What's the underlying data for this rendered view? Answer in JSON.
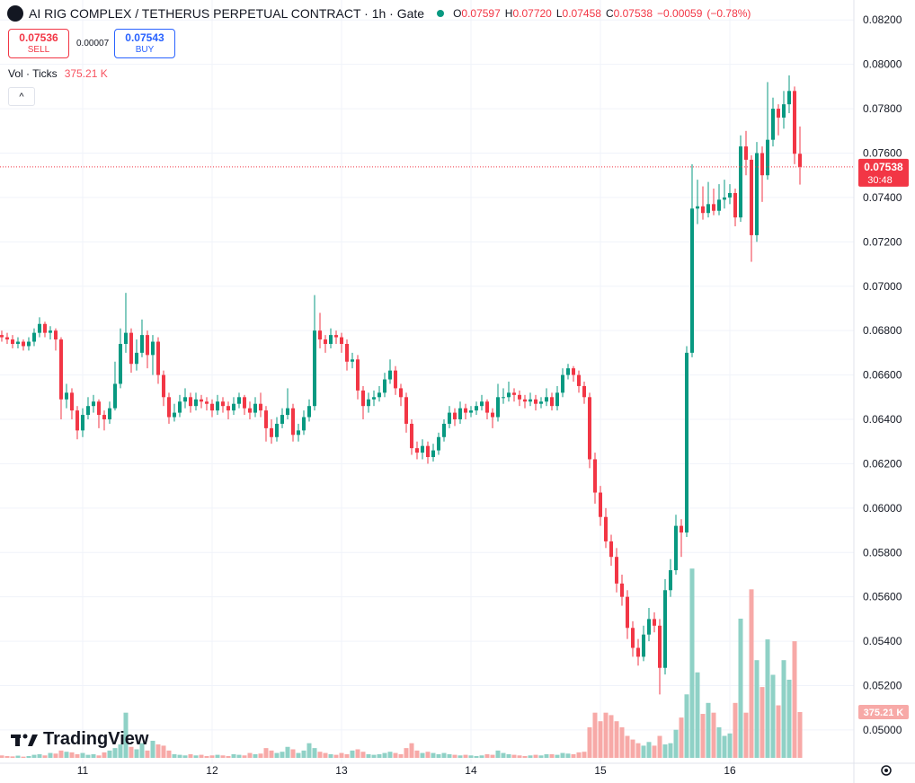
{
  "chart_data": {
    "type": "candlestick",
    "title": "AI RIG COMPLEX / TETHERUS PERPETUAL CONTRACT · 1h · Gate",
    "ohlc_legend": {
      "open": {
        "key": "O",
        "value": 0.07597
      },
      "high": {
        "key": "H",
        "value": {
          "value": 0.0772,
          "label": "0.07720"
        }
      },
      "low": {
        "key": "L",
        "value": 0.07458
      },
      "close": {
        "key": "C",
        "value": 0.07538
      },
      "change": {
        "value": -0.00059,
        "label": "−0.00059"
      },
      "change_pct": {
        "value": -0.78,
        "label": "(−0.78%)"
      }
    },
    "trade": {
      "sell": {
        "price": 0.07536,
        "label": "SELL"
      },
      "spread": 7e-05,
      "buy": {
        "price": 0.07543,
        "label": "BUY"
      }
    },
    "volume_legend": {
      "title": "Vol · Ticks"
    },
    "current_price": 0.07538,
    "countdown": "30:48",
    "branding": "TradingView",
    "up_color": "#089981",
    "down_color": "#f23645",
    "volume_up_color": "#8fd1c6",
    "volume_down_color": "#f7a9a7",
    "grid": true,
    "ylim": [
      0.0485,
      0.0829
    ],
    "yticks": [
      {
        "value": 0.05,
        "label": "0.05000"
      },
      {
        "value": 0.052,
        "label": "0.05200"
      },
      {
        "value": 0.054,
        "label": "0.05400"
      },
      {
        "value": 0.056,
        "label": "0.05600"
      },
      {
        "value": 0.058,
        "label": "0.05800"
      },
      {
        "value": 0.06,
        "label": "0.06000"
      },
      {
        "value": 0.062,
        "label": "0.06200"
      },
      {
        "value": 0.064,
        "label": "0.06400"
      },
      {
        "value": 0.066,
        "label": "0.06600"
      },
      {
        "value": 0.068,
        "label": "0.06800"
      },
      {
        "value": 0.07,
        "label": "0.07000"
      },
      {
        "value": 0.072,
        "label": "0.07200"
      },
      {
        "value": 0.074,
        "label": "0.07400"
      },
      {
        "value": 0.076,
        "label": "0.07600"
      },
      {
        "value": 0.078,
        "label": "0.07800"
      },
      {
        "value": 0.08,
        "label": "0.08000"
      },
      {
        "value": 0.082,
        "label": "0.08200"
      }
    ],
    "xlim": [
      -0.33,
      158
    ],
    "xticks": [
      {
        "value": 15,
        "label": "11"
      },
      {
        "value": 39,
        "label": "12"
      },
      {
        "value": 63,
        "label": "13"
      },
      {
        "value": 87,
        "label": "14"
      },
      {
        "value": 111,
        "label": "15"
      },
      {
        "value": 135,
        "label": "16"
      }
    ],
    "candles": [
      [
        0.0678,
        0.068,
        0.0675,
        0.0677
      ],
      [
        0.0677,
        0.0679,
        0.0674,
        0.0676
      ],
      [
        0.0676,
        0.0678,
        0.0672,
        0.0674
      ],
      [
        0.0674,
        0.0677,
        0.0672,
        0.0675
      ],
      [
        0.0675,
        0.0676,
        0.0671,
        0.0673
      ],
      [
        0.0673,
        0.0677,
        0.0671,
        0.0675
      ],
      [
        0.0675,
        0.0681,
        0.0673,
        0.0679
      ],
      [
        0.0679,
        0.0686,
        0.0677,
        0.0683
      ],
      [
        0.0683,
        0.0684,
        0.0677,
        0.0679
      ],
      [
        0.0679,
        0.0682,
        0.0676,
        0.068
      ],
      [
        0.068,
        0.0681,
        0.0671,
        0.0676
      ],
      [
        0.0676,
        0.0677,
        0.064,
        0.0649
      ],
      [
        0.0649,
        0.0656,
        0.0645,
        0.0652
      ],
      [
        0.0652,
        0.0654,
        0.064,
        0.0644
      ],
      [
        0.0644,
        0.0646,
        0.0631,
        0.0635
      ],
      [
        0.0635,
        0.0645,
        0.0632,
        0.0642
      ],
      [
        0.0642,
        0.065,
        0.064,
        0.0646
      ],
      [
        0.0646,
        0.0651,
        0.0643,
        0.0648
      ],
      [
        0.0648,
        0.0649,
        0.0636,
        0.0642
      ],
      [
        0.0642,
        0.0644,
        0.0635,
        0.064
      ],
      [
        0.064,
        0.0648,
        0.0638,
        0.0645
      ],
      [
        0.0645,
        0.0666,
        0.0644,
        0.0656
      ],
      [
        0.0656,
        0.0681,
        0.0654,
        0.0674
      ],
      [
        0.0674,
        0.0697,
        0.067,
        0.0679
      ],
      [
        0.0679,
        0.0681,
        0.0661,
        0.0665
      ],
      [
        0.0665,
        0.0676,
        0.0662,
        0.067
      ],
      [
        0.067,
        0.0685,
        0.0668,
        0.0678
      ],
      [
        0.0678,
        0.068,
        0.0663,
        0.0669
      ],
      [
        0.0669,
        0.0678,
        0.066,
        0.0675
      ],
      [
        0.0675,
        0.0677,
        0.0656,
        0.066
      ],
      [
        0.066,
        0.0662,
        0.0646,
        0.065
      ],
      [
        0.065,
        0.0652,
        0.0638,
        0.0641
      ],
      [
        0.0641,
        0.0647,
        0.0639,
        0.0643
      ],
      [
        0.0643,
        0.0651,
        0.0641,
        0.0648
      ],
      [
        0.0648,
        0.0654,
        0.0645,
        0.065
      ],
      [
        0.065,
        0.0652,
        0.0643,
        0.0646
      ],
      [
        0.0646,
        0.0652,
        0.0644,
        0.0649
      ],
      [
        0.0649,
        0.0651,
        0.0645,
        0.0648
      ],
      [
        0.0648,
        0.065,
        0.0644,
        0.0647
      ],
      [
        0.0647,
        0.0649,
        0.0641,
        0.0644
      ],
      [
        0.0644,
        0.0651,
        0.0642,
        0.0648
      ],
      [
        0.0648,
        0.065,
        0.0643,
        0.0646
      ],
      [
        0.0646,
        0.0648,
        0.064,
        0.0644
      ],
      [
        0.0644,
        0.065,
        0.0642,
        0.0647
      ],
      [
        0.0647,
        0.0652,
        0.0645,
        0.065
      ],
      [
        0.065,
        0.0651,
        0.0642,
        0.0645
      ],
      [
        0.0645,
        0.0648,
        0.064,
        0.0643
      ],
      [
        0.0643,
        0.065,
        0.0641,
        0.0647
      ],
      [
        0.0647,
        0.0652,
        0.0641,
        0.0644
      ],
      [
        0.0644,
        0.0646,
        0.063,
        0.0636
      ],
      [
        0.0636,
        0.064,
        0.0629,
        0.0632
      ],
      [
        0.0632,
        0.0641,
        0.063,
        0.0638
      ],
      [
        0.0638,
        0.0645,
        0.0636,
        0.0642
      ],
      [
        0.0642,
        0.0654,
        0.064,
        0.0645
      ],
      [
        0.0645,
        0.0647,
        0.063,
        0.0633
      ],
      [
        0.0633,
        0.0638,
        0.063,
        0.0635
      ],
      [
        0.0635,
        0.0644,
        0.0633,
        0.0641
      ],
      [
        0.0641,
        0.0649,
        0.0639,
        0.0646
      ],
      [
        0.0646,
        0.0696,
        0.0644,
        0.068
      ],
      [
        0.068,
        0.0688,
        0.0672,
        0.0676
      ],
      [
        0.0676,
        0.0678,
        0.067,
        0.0674
      ],
      [
        0.0674,
        0.0681,
        0.0672,
        0.0678
      ],
      [
        0.0678,
        0.068,
        0.0674,
        0.0677
      ],
      [
        0.0677,
        0.0679,
        0.067,
        0.0674
      ],
      [
        0.0674,
        0.0676,
        0.0662,
        0.0666
      ],
      [
        0.0666,
        0.067,
        0.0663,
        0.0667
      ],
      [
        0.0667,
        0.0669,
        0.0649,
        0.0653
      ],
      [
        0.0653,
        0.0655,
        0.064,
        0.0646
      ],
      [
        0.0646,
        0.0652,
        0.0643,
        0.0649
      ],
      [
        0.0649,
        0.0653,
        0.0646,
        0.065
      ],
      [
        0.065,
        0.0655,
        0.0648,
        0.0652
      ],
      [
        0.0652,
        0.0661,
        0.065,
        0.0658
      ],
      [
        0.0658,
        0.0667,
        0.0656,
        0.0662
      ],
      [
        0.0662,
        0.0664,
        0.0651,
        0.0654
      ],
      [
        0.0654,
        0.0656,
        0.0646,
        0.065
      ],
      [
        0.065,
        0.0652,
        0.0634,
        0.0638
      ],
      [
        0.0638,
        0.064,
        0.0624,
        0.0627
      ],
      [
        0.0627,
        0.063,
        0.0622,
        0.0625
      ],
      [
        0.0625,
        0.0631,
        0.0622,
        0.0628
      ],
      [
        0.0628,
        0.063,
        0.062,
        0.0623
      ],
      [
        0.0623,
        0.0629,
        0.0621,
        0.0626
      ],
      [
        0.0626,
        0.0634,
        0.0624,
        0.0632
      ],
      [
        0.0632,
        0.064,
        0.063,
        0.0638
      ],
      [
        0.0638,
        0.0646,
        0.0636,
        0.0643
      ],
      [
        0.0643,
        0.0645,
        0.0637,
        0.064
      ],
      [
        0.064,
        0.0648,
        0.0638,
        0.0645
      ],
      [
        0.0645,
        0.0647,
        0.064,
        0.0643
      ],
      [
        0.0643,
        0.0646,
        0.0641,
        0.0644
      ],
      [
        0.0644,
        0.0648,
        0.0642,
        0.0646
      ],
      [
        0.0646,
        0.0651,
        0.0644,
        0.0648
      ],
      [
        0.0648,
        0.0649,
        0.064,
        0.0643
      ],
      [
        0.0643,
        0.0645,
        0.0636,
        0.0641
      ],
      [
        0.0641,
        0.0656,
        0.0639,
        0.065
      ],
      [
        0.065,
        0.0654,
        0.0647,
        0.065
      ],
      [
        0.065,
        0.0657,
        0.0648,
        0.0652
      ],
      [
        0.0652,
        0.0654,
        0.0648,
        0.0651
      ],
      [
        0.0651,
        0.0653,
        0.0646,
        0.0649
      ],
      [
        0.0649,
        0.0651,
        0.0645,
        0.0648
      ],
      [
        0.0648,
        0.0652,
        0.0646,
        0.0649
      ],
      [
        0.0649,
        0.0651,
        0.0644,
        0.0647
      ],
      [
        0.0647,
        0.065,
        0.0645,
        0.0648
      ],
      [
        0.0648,
        0.0654,
        0.0646,
        0.065
      ],
      [
        0.065,
        0.0652,
        0.0644,
        0.0646
      ],
      [
        0.0646,
        0.0655,
        0.0644,
        0.0652
      ],
      [
        0.0652,
        0.0663,
        0.065,
        0.066
      ],
      [
        0.066,
        0.0665,
        0.0658,
        0.0663
      ],
      [
        0.0663,
        0.0664,
        0.0657,
        0.066
      ],
      [
        0.066,
        0.0662,
        0.0652,
        0.0655
      ],
      [
        0.0655,
        0.0657,
        0.0647,
        0.065
      ],
      [
        0.065,
        0.0652,
        0.0618,
        0.0622
      ],
      [
        0.0622,
        0.0625,
        0.0602,
        0.0607
      ],
      [
        0.0607,
        0.061,
        0.0592,
        0.0596
      ],
      [
        0.0596,
        0.06,
        0.0582,
        0.0585
      ],
      [
        0.0585,
        0.0588,
        0.0574,
        0.0578
      ],
      [
        0.0578,
        0.0582,
        0.0562,
        0.0566
      ],
      [
        0.0566,
        0.057,
        0.0556,
        0.056
      ],
      [
        0.056,
        0.0563,
        0.0541,
        0.0546
      ],
      [
        0.0546,
        0.0549,
        0.0533,
        0.0537
      ],
      [
        0.0537,
        0.0541,
        0.0529,
        0.0533
      ],
      [
        0.0533,
        0.0547,
        0.0531,
        0.0543
      ],
      [
        0.0543,
        0.0555,
        0.054,
        0.055
      ],
      [
        0.055,
        0.0553,
        0.0544,
        0.0547
      ],
      [
        0.0547,
        0.055,
        0.0516,
        0.0528
      ],
      [
        0.0528,
        0.0568,
        0.0525,
        0.0563
      ],
      [
        0.0563,
        0.0577,
        0.056,
        0.0572
      ],
      [
        0.0572,
        0.0597,
        0.057,
        0.0592
      ],
      [
        0.0592,
        0.0595,
        0.0578,
        0.0589
      ],
      [
        0.0589,
        0.0673,
        0.0587,
        0.067
      ],
      [
        0.067,
        0.0755,
        0.0668,
        0.0735
      ],
      [
        0.0735,
        0.0748,
        0.0728,
        0.0736
      ],
      [
        0.0736,
        0.0745,
        0.073,
        0.0733
      ],
      [
        0.0733,
        0.0747,
        0.0731,
        0.0737
      ],
      [
        0.0737,
        0.0744,
        0.0732,
        0.0734
      ],
      [
        0.0734,
        0.0746,
        0.0732,
        0.0739
      ],
      [
        0.0739,
        0.0748,
        0.0735,
        0.074
      ],
      [
        0.074,
        0.0746,
        0.0737,
        0.0742
      ],
      [
        0.0742,
        0.0744,
        0.0727,
        0.0731
      ],
      [
        0.0731,
        0.0768,
        0.0729,
        0.0763
      ],
      [
        0.0763,
        0.077,
        0.075,
        0.0757
      ],
      [
        0.0757,
        0.0759,
        0.0711,
        0.0723
      ],
      [
        0.0723,
        0.0765,
        0.072,
        0.076
      ],
      [
        0.076,
        0.0763,
        0.0738,
        0.075
      ],
      [
        0.075,
        0.0792,
        0.0748,
        0.0766
      ],
      [
        0.0766,
        0.0785,
        0.0763,
        0.078
      ],
      [
        0.078,
        0.0782,
        0.0768,
        0.0776
      ],
      [
        0.0776,
        0.0788,
        0.0771,
        0.0782
      ],
      [
        0.0782,
        0.0795,
        0.0778,
        0.0788
      ],
      [
        0.0788,
        0.079,
        0.0755,
        0.07597
      ],
      [
        0.07597,
        0.0772,
        0.07458,
        0.07538
      ]
    ],
    "volume": {
      "ylim": [
        0,
        2000000
      ],
      "last": {
        "value": 375210,
        "label": "375.21 K"
      },
      "values": [
        20000,
        15000,
        12000,
        18000,
        10000,
        15000,
        25000,
        30000,
        20000,
        40000,
        35000,
        60000,
        50000,
        45000,
        30000,
        40000,
        25000,
        30000,
        20000,
        45000,
        60000,
        80000,
        110000,
        370000,
        90000,
        70000,
        120000,
        60000,
        140000,
        110000,
        100000,
        60000,
        30000,
        25000,
        20000,
        30000,
        20000,
        25000,
        15000,
        20000,
        25000,
        20000,
        15000,
        30000,
        25000,
        20000,
        40000,
        30000,
        35000,
        80000,
        60000,
        40000,
        50000,
        90000,
        70000,
        40000,
        60000,
        120000,
        80000,
        50000,
        40000,
        30000,
        25000,
        40000,
        30000,
        60000,
        70000,
        50000,
        30000,
        25000,
        30000,
        40000,
        50000,
        40000,
        30000,
        80000,
        120000,
        60000,
        40000,
        50000,
        40000,
        30000,
        40000,
        30000,
        25000,
        20000,
        25000,
        20000,
        15000,
        20000,
        30000,
        25000,
        60000,
        40000,
        30000,
        25000,
        20000,
        15000,
        20000,
        25000,
        20000,
        30000,
        30000,
        25000,
        40000,
        35000,
        30000,
        45000,
        50000,
        250000,
        370000,
        300000,
        370000,
        350000,
        300000,
        250000,
        180000,
        150000,
        120000,
        100000,
        130000,
        100000,
        180000,
        110000,
        120000,
        230000,
        330000,
        520000,
        1550000,
        700000,
        360000,
        450000,
        370000,
        250000,
        180000,
        200000,
        450000,
        1140000,
        370000,
        1380000,
        800000,
        580000,
        970000,
        680000,
        430000,
        800000,
        640000,
        955000,
        375210
      ]
    }
  }
}
